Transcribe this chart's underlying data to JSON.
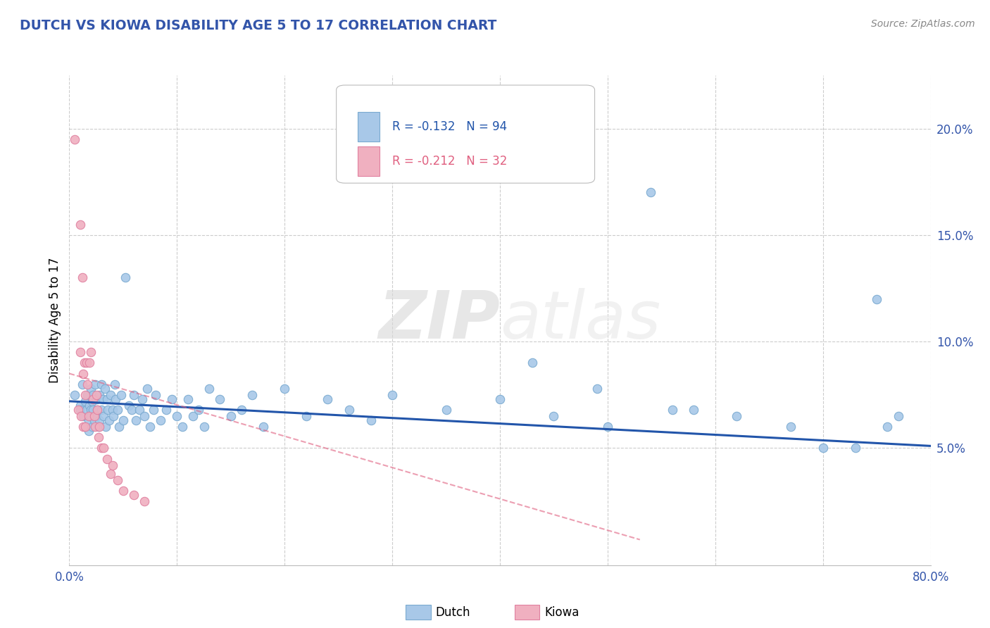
{
  "title": "DUTCH VS KIOWA DISABILITY AGE 5 TO 17 CORRELATION CHART",
  "source": "Source: ZipAtlas.com",
  "ylabel": "Disability Age 5 to 17",
  "xlim": [
    0.0,
    0.8
  ],
  "ylim": [
    -0.005,
    0.225
  ],
  "xticks": [
    0.0,
    0.1,
    0.2,
    0.3,
    0.4,
    0.5,
    0.6,
    0.7,
    0.8
  ],
  "xtick_labels": [
    "0.0%",
    "",
    "",
    "",
    "",
    "",
    "",
    "",
    "80.0%"
  ],
  "yticks_right": [
    0.05,
    0.1,
    0.15,
    0.2
  ],
  "ytick_labels_right": [
    "5.0%",
    "10.0%",
    "15.0%",
    "20.0%"
  ],
  "legend_r_dutch": "R = -0.132",
  "legend_n_dutch": "N = 94",
  "legend_r_kiowa": "R = -0.212",
  "legend_n_kiowa": "N = 32",
  "dutch_color": "#a8c8e8",
  "dutch_edge_color": "#7aaad0",
  "kiowa_color": "#f0b0c0",
  "kiowa_edge_color": "#e080a0",
  "dutch_line_color": "#2255aa",
  "kiowa_line_color": "#e06080",
  "watermark_zip": "ZIP",
  "watermark_atlas": "atlas",
  "title_color": "#3355aa",
  "axis_label_color": "#3355aa",
  "source_color": "#888888",
  "dutch_scatter_x": [
    0.005,
    0.01,
    0.01,
    0.012,
    0.013,
    0.015,
    0.015,
    0.016,
    0.017,
    0.018,
    0.018,
    0.019,
    0.02,
    0.02,
    0.02,
    0.021,
    0.021,
    0.022,
    0.022,
    0.023,
    0.024,
    0.025,
    0.025,
    0.026,
    0.027,
    0.028,
    0.028,
    0.03,
    0.03,
    0.031,
    0.032,
    0.033,
    0.034,
    0.035,
    0.036,
    0.037,
    0.038,
    0.04,
    0.041,
    0.042,
    0.043,
    0.045,
    0.046,
    0.048,
    0.05,
    0.052,
    0.055,
    0.058,
    0.06,
    0.062,
    0.065,
    0.068,
    0.07,
    0.072,
    0.075,
    0.078,
    0.08,
    0.085,
    0.09,
    0.095,
    0.1,
    0.105,
    0.11,
    0.115,
    0.12,
    0.125,
    0.13,
    0.14,
    0.15,
    0.16,
    0.17,
    0.18,
    0.2,
    0.22,
    0.24,
    0.26,
    0.28,
    0.3,
    0.35,
    0.4,
    0.45,
    0.5,
    0.56,
    0.62,
    0.67,
    0.7,
    0.73,
    0.75,
    0.76,
    0.77,
    0.43,
    0.49,
    0.54,
    0.58
  ],
  "dutch_scatter_y": [
    0.075,
    0.07,
    0.068,
    0.08,
    0.065,
    0.072,
    0.06,
    0.068,
    0.075,
    0.063,
    0.058,
    0.07,
    0.078,
    0.065,
    0.068,
    0.072,
    0.06,
    0.075,
    0.068,
    0.063,
    0.08,
    0.065,
    0.073,
    0.068,
    0.06,
    0.075,
    0.063,
    0.08,
    0.068,
    0.073,
    0.065,
    0.078,
    0.06,
    0.073,
    0.068,
    0.063,
    0.075,
    0.068,
    0.065,
    0.08,
    0.073,
    0.068,
    0.06,
    0.075,
    0.063,
    0.13,
    0.07,
    0.068,
    0.075,
    0.063,
    0.068,
    0.073,
    0.065,
    0.078,
    0.06,
    0.068,
    0.075,
    0.063,
    0.068,
    0.073,
    0.065,
    0.06,
    0.073,
    0.065,
    0.068,
    0.06,
    0.078,
    0.073,
    0.065,
    0.068,
    0.075,
    0.06,
    0.078,
    0.065,
    0.073,
    0.068,
    0.063,
    0.075,
    0.068,
    0.073,
    0.065,
    0.06,
    0.068,
    0.065,
    0.06,
    0.05,
    0.05,
    0.12,
    0.06,
    0.065,
    0.09,
    0.078,
    0.17,
    0.068
  ],
  "kiowa_scatter_x": [
    0.005,
    0.008,
    0.01,
    0.01,
    0.011,
    0.012,
    0.013,
    0.013,
    0.014,
    0.015,
    0.015,
    0.016,
    0.017,
    0.018,
    0.019,
    0.02,
    0.022,
    0.023,
    0.024,
    0.025,
    0.026,
    0.027,
    0.028,
    0.03,
    0.032,
    0.035,
    0.038,
    0.04,
    0.045,
    0.05,
    0.06,
    0.07
  ],
  "kiowa_scatter_y": [
    0.195,
    0.068,
    0.155,
    0.095,
    0.065,
    0.13,
    0.085,
    0.06,
    0.09,
    0.075,
    0.06,
    0.09,
    0.08,
    0.065,
    0.09,
    0.095,
    0.073,
    0.065,
    0.06,
    0.075,
    0.068,
    0.055,
    0.06,
    0.05,
    0.05,
    0.045,
    0.038,
    0.042,
    0.035,
    0.03,
    0.028,
    0.025
  ],
  "dutch_trendline_x": [
    0.0,
    0.8
  ],
  "dutch_trendline_y": [
    0.072,
    0.051
  ],
  "kiowa_trendline_x": [
    0.0,
    0.53
  ],
  "kiowa_trendline_y": [
    0.085,
    0.007
  ],
  "background_color": "#ffffff",
  "grid_color": "#cccccc"
}
